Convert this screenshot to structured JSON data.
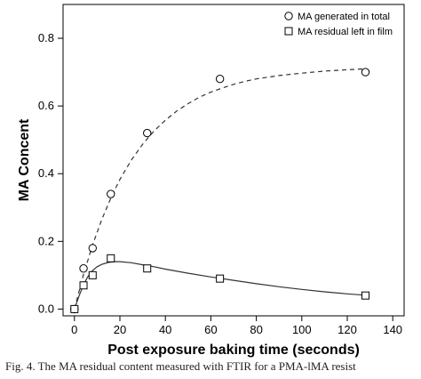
{
  "chart_data": {
    "type": "scatter",
    "xlabel": "Post exposure baking time (seconds)",
    "ylabel": "MA Concent",
    "xlim": [
      -5,
      145
    ],
    "ylim": [
      -0.02,
      0.9
    ],
    "xticks": [
      0,
      20,
      40,
      60,
      80,
      100,
      120,
      140
    ],
    "yticks": [
      0.0,
      0.2,
      0.4,
      0.6,
      0.8
    ],
    "ytick_labels": [
      "0.0",
      "0.2",
      "0.4",
      "0.6",
      "0.8"
    ],
    "legend_position": "top-right",
    "series": [
      {
        "name": "MA generated in total",
        "marker": "circle",
        "fit_line": "dashed",
        "x": [
          0,
          4,
          8,
          16,
          32,
          64,
          128
        ],
        "y": [
          0.0,
          0.12,
          0.18,
          0.34,
          0.52,
          0.68,
          0.7
        ],
        "fit_x": [
          0,
          4,
          8,
          12,
          16,
          20,
          25,
          30,
          35,
          40,
          45,
          50,
          55,
          60,
          65,
          70,
          75,
          80,
          90,
          100,
          110,
          120,
          128
        ],
        "fit_y": [
          0.0,
          0.102,
          0.19,
          0.264,
          0.328,
          0.383,
          0.44,
          0.487,
          0.526,
          0.558,
          0.585,
          0.607,
          0.626,
          0.641,
          0.653,
          0.664,
          0.673,
          0.68,
          0.69,
          0.697,
          0.703,
          0.707,
          0.71
        ]
      },
      {
        "name": "MA residual left in film",
        "marker": "square",
        "fit_line": "solid",
        "x": [
          0,
          4,
          8,
          16,
          32,
          64,
          128
        ],
        "y": [
          0.0,
          0.07,
          0.1,
          0.15,
          0.12,
          0.09,
          0.04
        ],
        "fit_x": [
          0,
          2,
          4,
          6,
          8,
          10,
          12,
          15,
          18,
          20,
          25,
          30,
          35,
          40,
          50,
          60,
          70,
          80,
          90,
          100,
          110,
          120,
          128
        ],
        "fit_y": [
          0.0,
          0.038,
          0.072,
          0.097,
          0.114,
          0.125,
          0.132,
          0.138,
          0.14,
          0.14,
          0.137,
          0.131,
          0.125,
          0.118,
          0.106,
          0.095,
          0.085,
          0.075,
          0.066,
          0.058,
          0.051,
          0.045,
          0.041
        ]
      }
    ]
  },
  "caption": "Fig. 4. The MA residual content measured with FTIR for a PMA-lMA resist"
}
